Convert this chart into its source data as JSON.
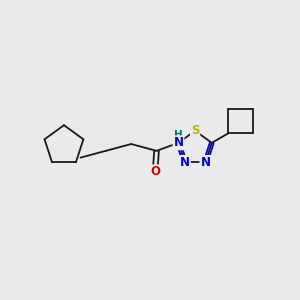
{
  "bg_color": "#EAEAEA",
  "bond_color": "#1a1a1a",
  "bond_width": 1.3,
  "atom_colors": {
    "S": "#B8B800",
    "N": "#0000EE",
    "O": "#DD0000",
    "H": "#007070",
    "C": "#1a1a1a"
  },
  "font_size": 8.5,
  "fig_width": 3.0,
  "fig_height": 3.0,
  "xlim": [
    0,
    10
  ],
  "ylim": [
    0,
    10
  ]
}
